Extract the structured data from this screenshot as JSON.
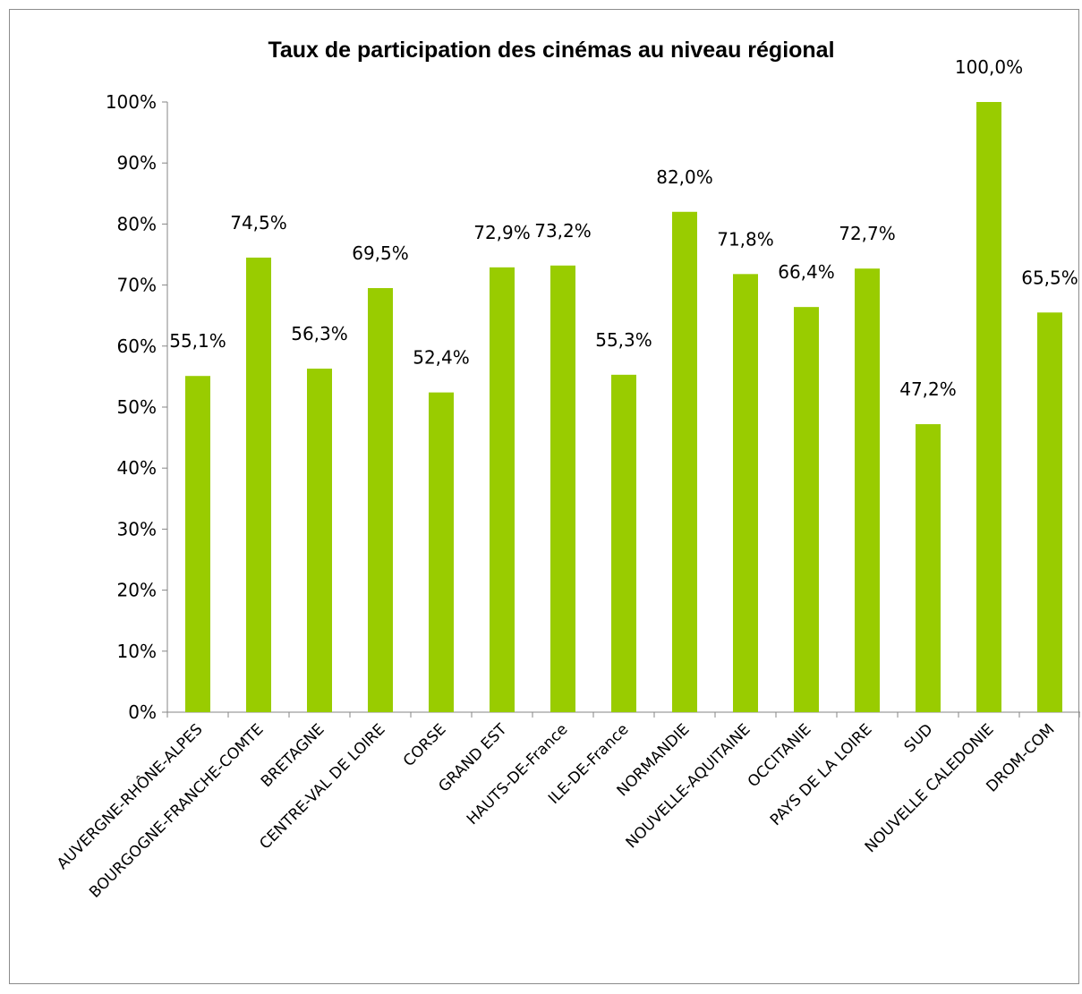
{
  "chart_data": {
    "type": "bar",
    "title": "Taux de participation des cinémas au niveau régional",
    "categories": [
      "AUVERGNE-RHÔNE-ALPES",
      "BOURGOGNE-FRANCHE-COMTE",
      "BRETAGNE",
      "CENTRE-VAL DE LOIRE",
      "CORSE",
      "GRAND EST",
      "HAUTS-DE-France",
      "ILE-DE-France",
      "NORMANDIE",
      "NOUVELLE-AQUITAINE",
      "OCCITANIE",
      "PAYS DE LA LOIRE",
      "SUD",
      "NOUVELLE CALEDONIE",
      "DROM-COM"
    ],
    "values": [
      55.1,
      74.5,
      56.3,
      69.5,
      52.4,
      72.9,
      73.2,
      55.3,
      82.0,
      71.8,
      66.4,
      72.7,
      47.2,
      100.0,
      65.5
    ],
    "data_labels": [
      "55,1%",
      "74,5%",
      "56,3%",
      "69,5%",
      "52,4%",
      "72,9%",
      "73,2%",
      "55,3%",
      "82,0%",
      "71,8%",
      "66,4%",
      "72,7%",
      "47,2%",
      "100,0%",
      "65,5%"
    ],
    "yticks": [
      "0%",
      "10%",
      "20%",
      "30%",
      "40%",
      "50%",
      "60%",
      "70%",
      "80%",
      "90%",
      "100%"
    ],
    "ylim": [
      0,
      100
    ],
    "xlabel": "",
    "ylabel": "",
    "grid": false,
    "legend": "none",
    "bar_color": "#99cc00",
    "axis_color": "#868686"
  }
}
